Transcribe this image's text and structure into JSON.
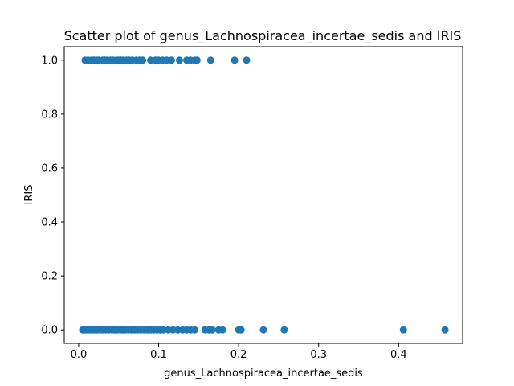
{
  "chart_data": {
    "type": "scatter",
    "title": "Scatter plot of genus_Lachnospiracea_incertae_sedis and IRIS",
    "xlabel": "genus_Lachnospiracea_incertae_sedis",
    "ylabel": "IRIS",
    "xlim": [
      -0.018,
      0.48
    ],
    "ylim": [
      -0.05,
      1.05
    ],
    "x_ticks": [
      "0.0",
      "0.1",
      "0.2",
      "0.3",
      "0.4"
    ],
    "y_ticks": [
      "0.0",
      "0.2",
      "0.4",
      "0.6",
      "0.8",
      "1.0"
    ],
    "grid": false,
    "legend": "none",
    "marker_color": "#1f77b4",
    "points": [
      {
        "x": 0.008,
        "y": 1
      },
      {
        "x": 0.012,
        "y": 1
      },
      {
        "x": 0.016,
        "y": 1
      },
      {
        "x": 0.019,
        "y": 1
      },
      {
        "x": 0.022,
        "y": 1
      },
      {
        "x": 0.025,
        "y": 1
      },
      {
        "x": 0.03,
        "y": 1
      },
      {
        "x": 0.033,
        "y": 1
      },
      {
        "x": 0.036,
        "y": 1
      },
      {
        "x": 0.04,
        "y": 1
      },
      {
        "x": 0.043,
        "y": 1
      },
      {
        "x": 0.047,
        "y": 1
      },
      {
        "x": 0.05,
        "y": 1
      },
      {
        "x": 0.053,
        "y": 1
      },
      {
        "x": 0.056,
        "y": 1
      },
      {
        "x": 0.06,
        "y": 1
      },
      {
        "x": 0.063,
        "y": 1
      },
      {
        "x": 0.067,
        "y": 1
      },
      {
        "x": 0.072,
        "y": 1
      },
      {
        "x": 0.076,
        "y": 1
      },
      {
        "x": 0.08,
        "y": 1
      },
      {
        "x": 0.09,
        "y": 1
      },
      {
        "x": 0.096,
        "y": 1
      },
      {
        "x": 0.1,
        "y": 1
      },
      {
        "x": 0.105,
        "y": 1
      },
      {
        "x": 0.11,
        "y": 1
      },
      {
        "x": 0.116,
        "y": 1
      },
      {
        "x": 0.126,
        "y": 1
      },
      {
        "x": 0.135,
        "y": 1
      },
      {
        "x": 0.14,
        "y": 1
      },
      {
        "x": 0.145,
        "y": 1
      },
      {
        "x": 0.148,
        "y": 1
      },
      {
        "x": 0.165,
        "y": 1
      },
      {
        "x": 0.195,
        "y": 1
      },
      {
        "x": 0.21,
        "y": 1
      },
      {
        "x": 0.005,
        "y": 0
      },
      {
        "x": 0.008,
        "y": 0
      },
      {
        "x": 0.011,
        "y": 0
      },
      {
        "x": 0.014,
        "y": 0
      },
      {
        "x": 0.017,
        "y": 0
      },
      {
        "x": 0.02,
        "y": 0
      },
      {
        "x": 0.023,
        "y": 0
      },
      {
        "x": 0.027,
        "y": 0
      },
      {
        "x": 0.03,
        "y": 0
      },
      {
        "x": 0.034,
        "y": 0
      },
      {
        "x": 0.038,
        "y": 0
      },
      {
        "x": 0.042,
        "y": 0
      },
      {
        "x": 0.045,
        "y": 0
      },
      {
        "x": 0.048,
        "y": 0
      },
      {
        "x": 0.052,
        "y": 0
      },
      {
        "x": 0.055,
        "y": 0
      },
      {
        "x": 0.058,
        "y": 0
      },
      {
        "x": 0.062,
        "y": 0
      },
      {
        "x": 0.066,
        "y": 0
      },
      {
        "x": 0.07,
        "y": 0
      },
      {
        "x": 0.074,
        "y": 0
      },
      {
        "x": 0.078,
        "y": 0
      },
      {
        "x": 0.082,
        "y": 0
      },
      {
        "x": 0.086,
        "y": 0
      },
      {
        "x": 0.09,
        "y": 0
      },
      {
        "x": 0.094,
        "y": 0
      },
      {
        "x": 0.098,
        "y": 0
      },
      {
        "x": 0.102,
        "y": 0
      },
      {
        "x": 0.106,
        "y": 0
      },
      {
        "x": 0.112,
        "y": 0
      },
      {
        "x": 0.118,
        "y": 0
      },
      {
        "x": 0.124,
        "y": 0
      },
      {
        "x": 0.13,
        "y": 0
      },
      {
        "x": 0.135,
        "y": 0
      },
      {
        "x": 0.14,
        "y": 0
      },
      {
        "x": 0.145,
        "y": 0
      },
      {
        "x": 0.158,
        "y": 0
      },
      {
        "x": 0.163,
        "y": 0
      },
      {
        "x": 0.167,
        "y": 0
      },
      {
        "x": 0.175,
        "y": 0
      },
      {
        "x": 0.18,
        "y": 0
      },
      {
        "x": 0.2,
        "y": 0
      },
      {
        "x": 0.203,
        "y": 0
      },
      {
        "x": 0.231,
        "y": 0
      },
      {
        "x": 0.257,
        "y": 0
      },
      {
        "x": 0.406,
        "y": 0
      },
      {
        "x": 0.458,
        "y": 0
      }
    ]
  }
}
